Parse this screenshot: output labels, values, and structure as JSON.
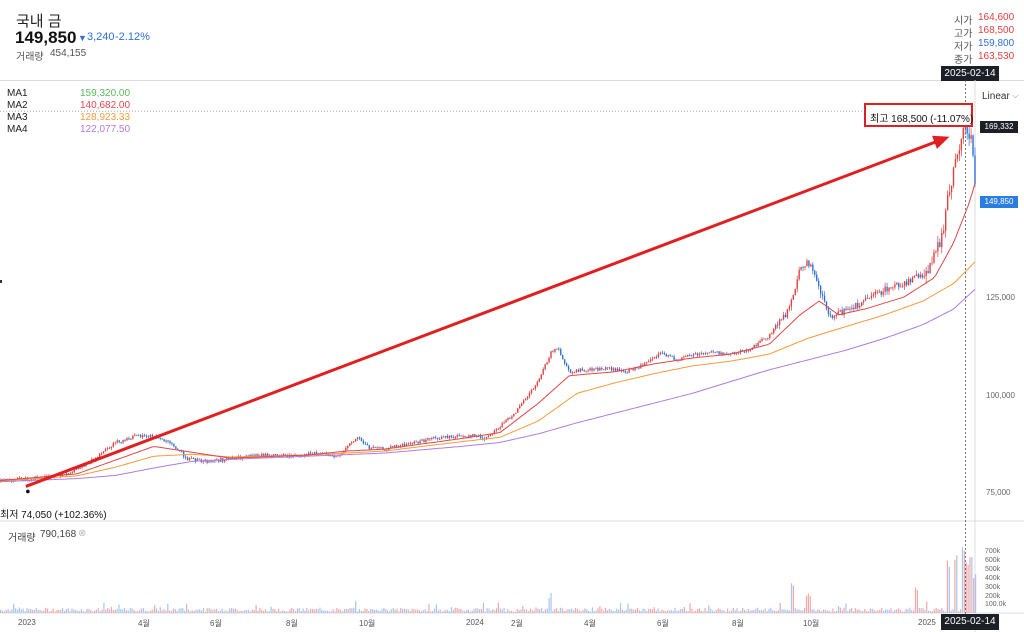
{
  "header": {
    "title": "국내 금",
    "price": "149,850",
    "change_arrow": "▼",
    "change_abs": "3,240",
    "change_pct": "-2.12%",
    "volume_label": "거래량",
    "volume_value": "454,155"
  },
  "ohlc": [
    {
      "label": "시가",
      "value": "164,600",
      "color": "#e04040"
    },
    {
      "label": "고가",
      "value": "168,500",
      "color": "#e04040"
    },
    {
      "label": "저가",
      "value": "159,800",
      "color": "#2f6fd6"
    },
    {
      "label": "종가",
      "value": "163,530",
      "color": "#e04040"
    }
  ],
  "crosshair_date": "2025-02-14",
  "moving_averages": [
    {
      "label": "MA1",
      "value": "159,320.00",
      "color": "#5cb85c"
    },
    {
      "label": "MA2",
      "value": "140,682.00",
      "color": "#e04848"
    },
    {
      "label": "MA3",
      "value": "128,923.33",
      "color": "#f39c3c"
    },
    {
      "label": "MA4",
      "value": "122,077.50",
      "color": "#b07ce0"
    }
  ],
  "scale_type": "Linear",
  "high_annotation": "최고 168,500 (-11.07%)",
  "low_annotation": "최저 74,050 (+102.36%)",
  "price_tags": {
    "crosshair": "169,332",
    "current": "149,850"
  },
  "volume_panel": {
    "label": "거래량",
    "value": "790,168"
  },
  "colors": {
    "up": "#e04040",
    "down": "#2f6fd6",
    "annotation": "#e02020"
  },
  "chart_data": {
    "type": "candlestick",
    "y_scale": "linear",
    "ylim": [
      65000,
      176000
    ],
    "y_ticks": [
      "125,000",
      "100,000",
      "75,000"
    ],
    "y_tick_values": [
      125000,
      100000,
      75000
    ],
    "volume_ticks": [
      "700k",
      "600k",
      "500k",
      "400k",
      "300k",
      "200k",
      "100.0k"
    ],
    "volume_tick_values": [
      700000,
      600000,
      500000,
      400000,
      300000,
      200000,
      100000
    ],
    "volume_max": 780000,
    "x_labels": [
      "2023",
      "4월",
      "6월",
      "8월",
      "10월",
      "2024",
      "2월",
      "4월",
      "6월",
      "8월",
      "10월",
      "2025"
    ],
    "x_label_positions": [
      0.0,
      2.5,
      4.5,
      6.5,
      8.5,
      11.0,
      12.5,
      14.5,
      16.5,
      18.5,
      20.5,
      23.0
    ],
    "x_range_months": [
      0,
      25.35
    ],
    "price_path": [
      [
        0,
        75500
      ],
      [
        0.6,
        75600
      ],
      [
        1.2,
        76200
      ],
      [
        1.8,
        77300
      ],
      [
        2.3,
        79500
      ],
      [
        2.6,
        82300
      ],
      [
        3.0,
        85000
      ],
      [
        3.5,
        86500
      ],
      [
        4.0,
        86700
      ],
      [
        4.5,
        84200
      ],
      [
        4.9,
        80700
      ],
      [
        5.4,
        80200
      ],
      [
        6.0,
        80800
      ],
      [
        6.5,
        81400
      ],
      [
        7.0,
        81800
      ],
      [
        7.5,
        81500
      ],
      [
        8.0,
        82000
      ],
      [
        8.4,
        82200
      ],
      [
        8.7,
        81000
      ],
      [
        9.0,
        83500
      ],
      [
        9.3,
        86300
      ],
      [
        9.6,
        83600
      ],
      [
        10.0,
        83300
      ],
      [
        10.6,
        84600
      ],
      [
        11.2,
        85900
      ],
      [
        11.8,
        86500
      ],
      [
        12.3,
        86800
      ],
      [
        12.6,
        86000
      ],
      [
        13.0,
        89000
      ],
      [
        13.5,
        93800
      ],
      [
        14.0,
        100500
      ],
      [
        14.3,
        107500
      ],
      [
        14.5,
        109200
      ],
      [
        14.8,
        103000
      ],
      [
        15.2,
        103500
      ],
      [
        15.8,
        103800
      ],
      [
        16.3,
        103000
      ],
      [
        16.8,
        105000
      ],
      [
        17.2,
        107800
      ],
      [
        17.6,
        106000
      ],
      [
        18.0,
        107400
      ],
      [
        18.5,
        108000
      ],
      [
        19.0,
        107400
      ],
      [
        19.5,
        108800
      ],
      [
        20.0,
        112300
      ],
      [
        20.5,
        118500
      ],
      [
        20.8,
        128800
      ],
      [
        21.0,
        131500
      ],
      [
        21.3,
        124000
      ],
      [
        21.6,
        116300
      ],
      [
        22.0,
        119000
      ],
      [
        22.5,
        121000
      ],
      [
        23.0,
        124000
      ],
      [
        23.5,
        125500
      ],
      [
        24.0,
        127800
      ],
      [
        24.3,
        132000
      ],
      [
        24.5,
        138000
      ],
      [
        24.7,
        150000
      ],
      [
        24.9,
        159000
      ],
      [
        25.1,
        165000
      ],
      [
        25.25,
        163530
      ],
      [
        25.35,
        149850
      ]
    ],
    "ma2_path": [
      [
        0,
        75300
      ],
      [
        2,
        77000
      ],
      [
        3,
        80500
      ],
      [
        4,
        84000
      ],
      [
        5,
        82500
      ],
      [
        6,
        81000
      ],
      [
        8,
        81800
      ],
      [
        9,
        82800
      ],
      [
        10,
        83300
      ],
      [
        12,
        86000
      ],
      [
        13,
        87500
      ],
      [
        14,
        95000
      ],
      [
        14.8,
        102000
      ],
      [
        16,
        103000
      ],
      [
        17,
        105000
      ],
      [
        18,
        106500
      ],
      [
        19,
        107500
      ],
      [
        20,
        110000
      ],
      [
        20.8,
        117500
      ],
      [
        21.3,
        121000
      ],
      [
        21.8,
        117500
      ],
      [
        22.5,
        119000
      ],
      [
        23.5,
        122000
      ],
      [
        24.3,
        127000
      ],
      [
        24.8,
        136000
      ],
      [
        25.2,
        146000
      ],
      [
        25.35,
        151000
      ]
    ],
    "ma3_path": [
      [
        0,
        75200
      ],
      [
        2,
        76500
      ],
      [
        3,
        78700
      ],
      [
        4,
        81500
      ],
      [
        5,
        82000
      ],
      [
        6,
        81300
      ],
      [
        8,
        81800
      ],
      [
        10,
        82800
      ],
      [
        12,
        85200
      ],
      [
        13,
        86300
      ],
      [
        14,
        90500
      ],
      [
        15,
        97500
      ],
      [
        16,
        100200
      ],
      [
        17,
        102500
      ],
      [
        18,
        104500
      ],
      [
        19,
        105700
      ],
      [
        20,
        107500
      ],
      [
        21,
        111500
      ],
      [
        22,
        114500
      ],
      [
        23,
        117500
      ],
      [
        24,
        121000
      ],
      [
        24.8,
        125500
      ],
      [
        25.35,
        131000
      ]
    ],
    "ma4_path": [
      [
        0,
        75000
      ],
      [
        2,
        75800
      ],
      [
        3,
        76600
      ],
      [
        4,
        78500
      ],
      [
        5,
        80200
      ],
      [
        6,
        80700
      ],
      [
        8,
        81500
      ],
      [
        10,
        82300
      ],
      [
        12,
        84000
      ],
      [
        13,
        85000
      ],
      [
        14,
        87200
      ],
      [
        15,
        90000
      ],
      [
        16,
        92500
      ],
      [
        17,
        95000
      ],
      [
        18,
        97500
      ],
      [
        19,
        100500
      ],
      [
        20,
        103500
      ],
      [
        21,
        106000
      ],
      [
        22,
        108500
      ],
      [
        23,
        111500
      ],
      [
        24,
        115000
      ],
      [
        24.8,
        119000
      ],
      [
        25.35,
        124000
      ]
    ],
    "annotations": {
      "high": {
        "x": 25.1,
        "y": 168500
      },
      "low": {
        "x": 0.1,
        "y": 74050
      },
      "arrow": {
        "from": [
          0.1,
          74050
        ],
        "to": [
          24.8,
          162300
        ]
      }
    },
    "volume_spikes": [
      [
        24.65,
        720000
      ],
      [
        24.85,
        780000
      ],
      [
        25.05,
        760000
      ],
      [
        25.2,
        640000
      ],
      [
        25.3,
        520000
      ],
      [
        20.6,
        340000
      ],
      [
        21.0,
        260000
      ],
      [
        14.3,
        230000
      ],
      [
        23.8,
        310000
      ]
    ]
  }
}
